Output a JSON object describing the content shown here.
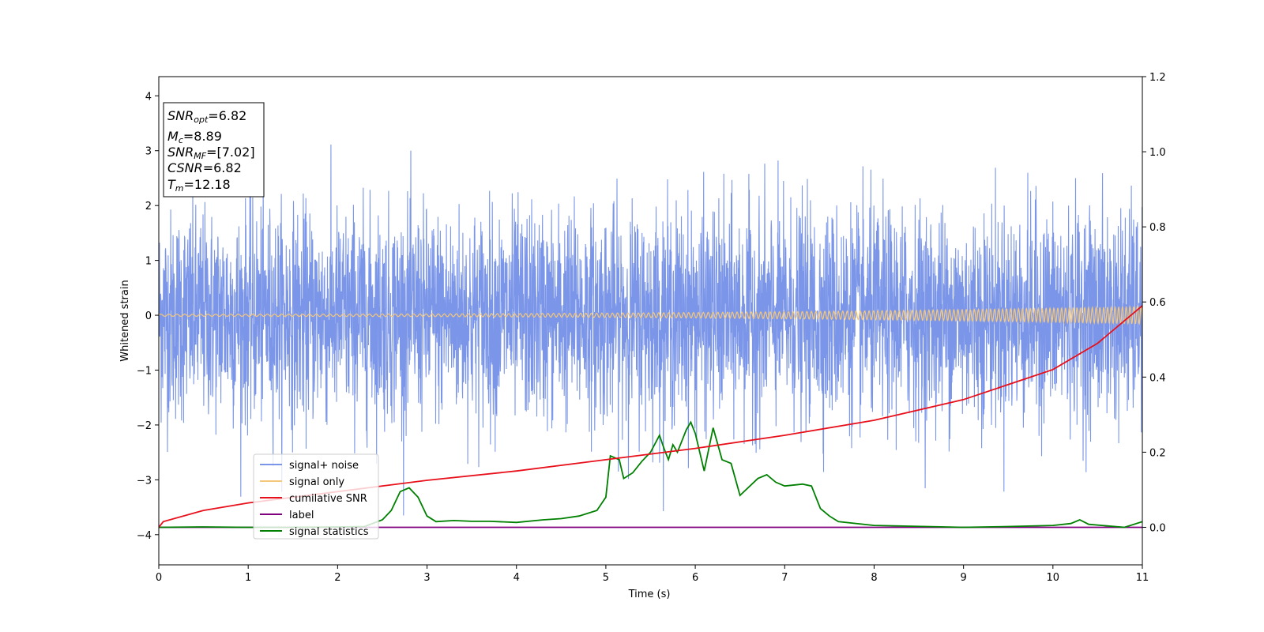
{
  "chart_data": {
    "type": "line",
    "title": "",
    "xlabel": "Time (s)",
    "ylabel": "Whitened strain",
    "xlim": [
      0,
      11
    ],
    "ylim": [
      -4.55,
      4.35
    ],
    "y2lim": [
      -0.1,
      1.2
    ],
    "grid": false,
    "legend_position": "lower-left",
    "x_ticks": [
      "0",
      "1",
      "2",
      "3",
      "4",
      "5",
      "6",
      "7",
      "8",
      "9",
      "10",
      "11"
    ],
    "y_ticks": [
      "−4",
      "−3",
      "−2",
      "−1",
      "0",
      "1",
      "2",
      "3",
      "4"
    ],
    "y_tick_values": [
      -4,
      -3,
      -2,
      -1,
      0,
      1,
      2,
      3,
      4
    ],
    "y2_ticks": [
      "0.0",
      "0.2",
      "0.4",
      "0.6",
      "0.8",
      "1.0",
      "1.2"
    ],
    "y2_tick_values": [
      0.0,
      0.2,
      0.4,
      0.6,
      0.8,
      1.0,
      1.2
    ],
    "annotation": {
      "lines": [
        {
          "base": "SNR",
          "sub": "opt",
          "value": "=6.82"
        },
        {
          "base": "M",
          "sub": "c",
          "value": "=8.89"
        },
        {
          "base": "SNR",
          "sub": "MF",
          "value": "=[7.02]"
        },
        {
          "base": "CSNR",
          "sub": "",
          "value": "=6.82"
        },
        {
          "base": "T",
          "sub": "m",
          "value": "=12.18"
        }
      ]
    },
    "series": [
      {
        "name": "signal+ noise",
        "color": "#7b96e8",
        "axis": "left",
        "kind": "noise",
        "amplitude_range": [
          -3.65,
          3.95
        ]
      },
      {
        "name": "signal only",
        "color": "#f5c77a",
        "axis": "left",
        "kind": "chirp",
        "amplitude_start": 0.02,
        "amplitude_end": 0.16
      },
      {
        "name": "cumilative SNR",
        "color": "#e8101b",
        "axis": "right",
        "x": [
          0,
          0.05,
          0.5,
          1,
          2,
          3,
          4,
          5,
          6,
          7,
          8,
          9,
          10,
          10.5,
          11
        ],
        "values": [
          0.0,
          0.015,
          0.045,
          0.065,
          0.095,
          0.125,
          0.15,
          0.18,
          0.21,
          0.245,
          0.285,
          0.34,
          0.42,
          0.49,
          0.59
        ]
      },
      {
        "name": "label",
        "color": "#800080",
        "axis": "right",
        "x": [
          0,
          11
        ],
        "values": [
          0.0,
          0.0
        ]
      },
      {
        "name": "signal statistics",
        "color": "#008000",
        "axis": "right",
        "x": [
          0,
          0.5,
          1,
          1.5,
          2,
          2.3,
          2.5,
          2.6,
          2.7,
          2.8,
          2.9,
          3.0,
          3.1,
          3.3,
          3.5,
          3.7,
          4.0,
          4.3,
          4.5,
          4.7,
          4.9,
          5.0,
          5.05,
          5.15,
          5.2,
          5.3,
          5.4,
          5.5,
          5.6,
          5.65,
          5.7,
          5.75,
          5.8,
          5.9,
          5.95,
          6.0,
          6.1,
          6.2,
          6.3,
          6.4,
          6.5,
          6.7,
          6.8,
          6.9,
          7.0,
          7.2,
          7.3,
          7.4,
          7.5,
          7.6,
          8.0,
          9.0,
          9.5,
          10.0,
          10.2,
          10.3,
          10.4,
          10.8,
          11.0
        ],
        "values": [
          0.0,
          0.001,
          0.0,
          0.0,
          0.001,
          0.002,
          0.02,
          0.045,
          0.095,
          0.105,
          0.08,
          0.03,
          0.015,
          0.018,
          0.016,
          0.016,
          0.013,
          0.02,
          0.023,
          0.03,
          0.045,
          0.08,
          0.19,
          0.18,
          0.13,
          0.145,
          0.175,
          0.2,
          0.245,
          0.21,
          0.18,
          0.22,
          0.2,
          0.26,
          0.28,
          0.25,
          0.15,
          0.265,
          0.18,
          0.17,
          0.085,
          0.13,
          0.14,
          0.12,
          0.11,
          0.115,
          0.11,
          0.05,
          0.03,
          0.015,
          0.005,
          0.0,
          0.002,
          0.005,
          0.01,
          0.02,
          0.008,
          0.0,
          0.015
        ]
      }
    ]
  }
}
